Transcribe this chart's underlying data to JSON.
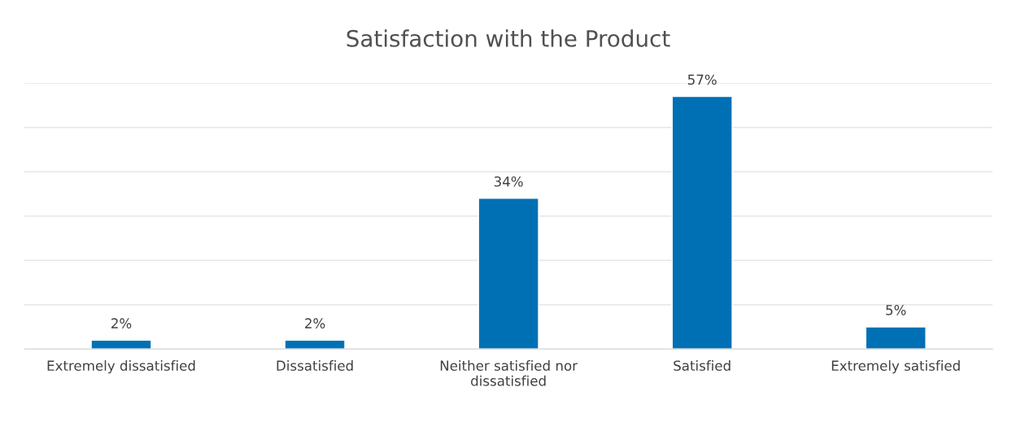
{
  "chart_data": {
    "type": "bar",
    "title": "Satisfaction with the Product",
    "categories": [
      "Extremely dissatisfied",
      "Dissatisfied",
      "Neither satisfied nor dissatisfied",
      "Satisfied",
      "Extremely satisfied"
    ],
    "values": [
      2,
      2,
      34,
      57,
      5
    ],
    "value_labels": [
      "2%",
      "2%",
      "34%",
      "57%",
      "5%"
    ],
    "color": "#0070b5",
    "ylim": [
      0,
      60
    ],
    "yticks": [
      {
        "value": 0,
        "label": null
      },
      {
        "value": 10,
        "label": null
      },
      {
        "value": 20,
        "label": null
      },
      {
        "value": 30,
        "label": null
      },
      {
        "value": 40,
        "label": null
      },
      {
        "value": 50,
        "label": null
      },
      {
        "value": 60,
        "label": null
      }
    ],
    "grid": "y",
    "tick_labels": "x"
  }
}
